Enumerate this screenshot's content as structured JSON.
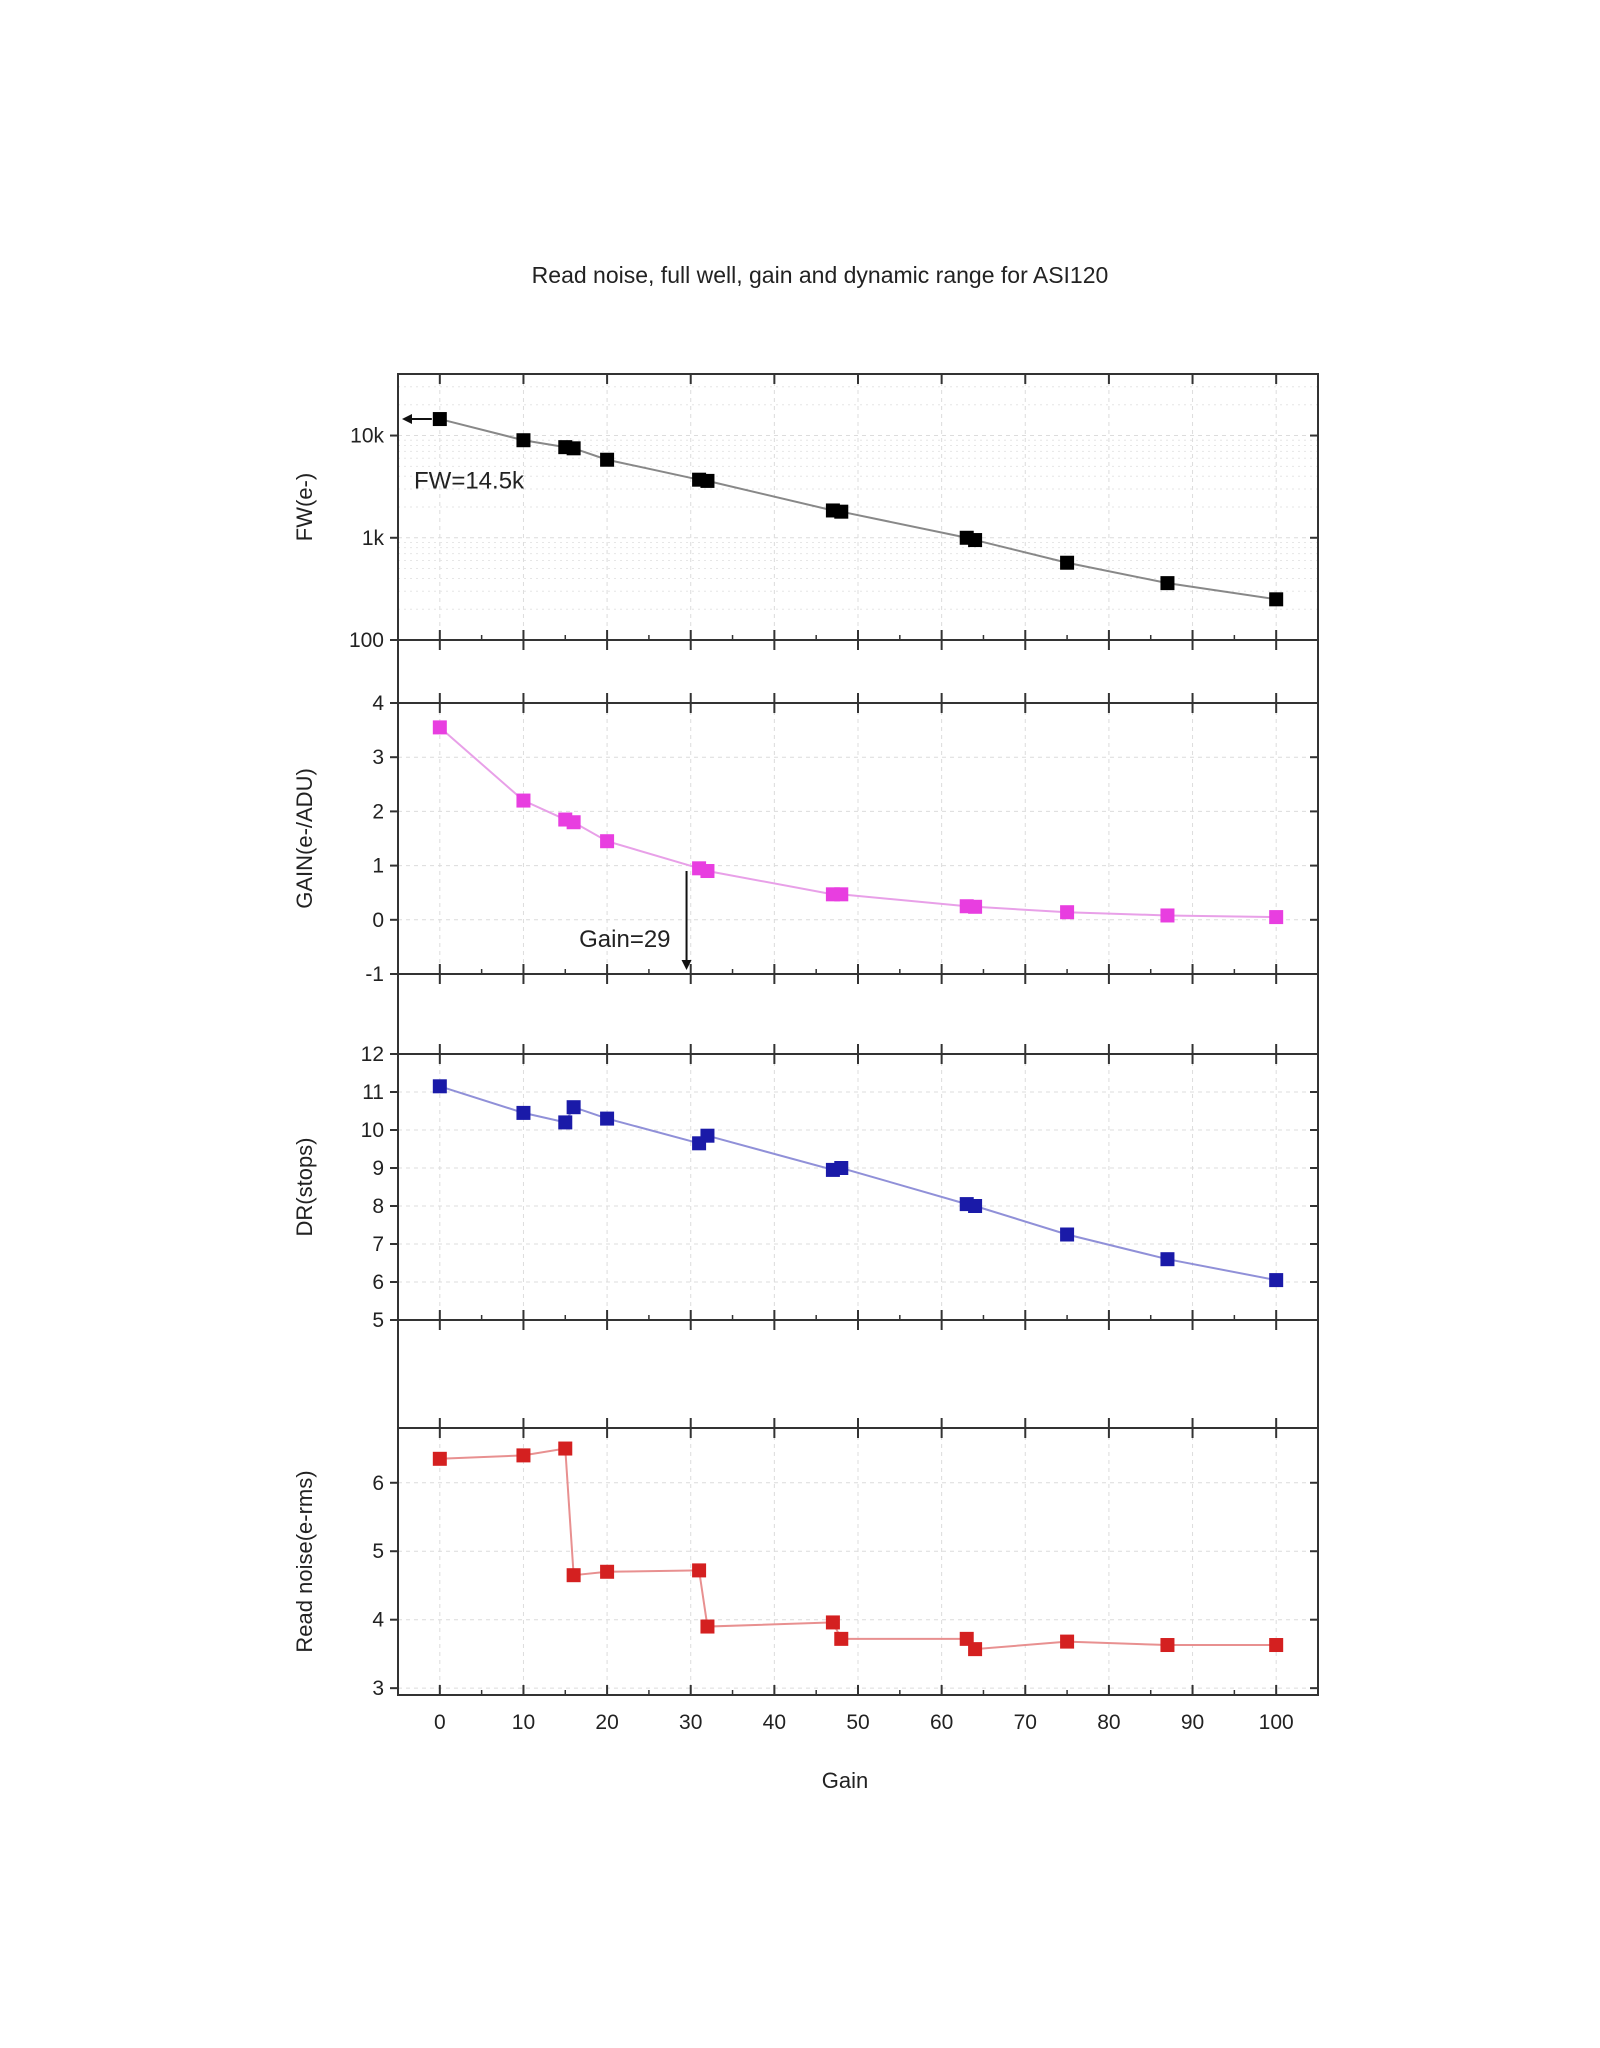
{
  "figure": {
    "title": "Read noise, full well, gain and dynamic range for ASI120",
    "xlabel": "Gain"
  },
  "chart_data": [
    {
      "type": "scatter",
      "title": "Read noise, full well, gain and dynamic range for ASI120",
      "ylabel": "FW(e-)",
      "yscale": "log",
      "ylim": [
        100,
        40000
      ],
      "xlim": [
        -5,
        105
      ],
      "grid": true,
      "color": "#000000",
      "line_color": "#888888",
      "ytick_values": [
        100,
        1000,
        10000
      ],
      "ytick_labels": [
        "100",
        "1k",
        "10k"
      ],
      "annotation": "FW=14.5k",
      "series": [
        {
          "x": [
            0,
            10,
            15,
            16,
            20,
            31,
            32,
            47,
            48,
            63,
            64,
            75,
            87,
            100
          ],
          "y": [
            14500,
            9000,
            7700,
            7500,
            5800,
            3700,
            3600,
            1850,
            1800,
            1000,
            950,
            570,
            360,
            250
          ]
        }
      ]
    },
    {
      "type": "scatter",
      "ylabel": "GAIN(e-/ADU)",
      "ylim": [
        -1,
        4
      ],
      "xlim": [
        -5,
        105
      ],
      "grid": true,
      "color": "#e83ee0",
      "line_color": "#e8a0e8",
      "ytick_labels": [
        "-1",
        "0",
        "1",
        "2",
        "3",
        "4"
      ],
      "annotation": "Gain=29",
      "series": [
        {
          "x": [
            0,
            10,
            15,
            16,
            20,
            31,
            32,
            47,
            48,
            63,
            64,
            75,
            87,
            100
          ],
          "y": [
            3.55,
            2.2,
            1.85,
            1.8,
            1.45,
            0.95,
            0.9,
            0.47,
            0.47,
            0.25,
            0.24,
            0.14,
            0.08,
            0.05
          ]
        }
      ]
    },
    {
      "type": "scatter",
      "ylabel": "DR(stops)",
      "ylim": [
        5,
        12
      ],
      "xlim": [
        -5,
        105
      ],
      "grid": true,
      "color": "#1a1aa8",
      "line_color": "#9090d8",
      "ytick_labels": [
        "5",
        "6",
        "7",
        "8",
        "9",
        "10",
        "11",
        "12"
      ],
      "series": [
        {
          "x": [
            0,
            10,
            15,
            16,
            20,
            31,
            32,
            47,
            48,
            63,
            64,
            75,
            87,
            100
          ],
          "y": [
            11.15,
            10.45,
            10.2,
            10.6,
            10.3,
            9.65,
            9.85,
            8.95,
            9.0,
            8.05,
            8.0,
            7.25,
            6.6,
            6.05
          ]
        }
      ]
    },
    {
      "type": "scatter",
      "ylabel": "Read noise(e-rms)",
      "xlabel": "Gain",
      "ylim": [
        2.9,
        6.8
      ],
      "xlim": [
        -5,
        105
      ],
      "grid": true,
      "color": "#d42020",
      "line_color": "#e89090",
      "ytick_labels": [
        "3",
        "4",
        "5",
        "6"
      ],
      "xtick_labels": [
        "0",
        "10",
        "20",
        "30",
        "40",
        "50",
        "60",
        "70",
        "80",
        "90",
        "100"
      ],
      "series": [
        {
          "x": [
            0,
            10,
            15,
            16,
            20,
            31,
            32,
            47,
            48,
            63,
            64,
            75,
            87,
            100
          ],
          "y": [
            6.35,
            6.4,
            6.5,
            4.65,
            4.7,
            4.72,
            3.9,
            3.96,
            3.72,
            3.72,
            3.57,
            3.68,
            3.63,
            3.63
          ]
        }
      ]
    }
  ]
}
